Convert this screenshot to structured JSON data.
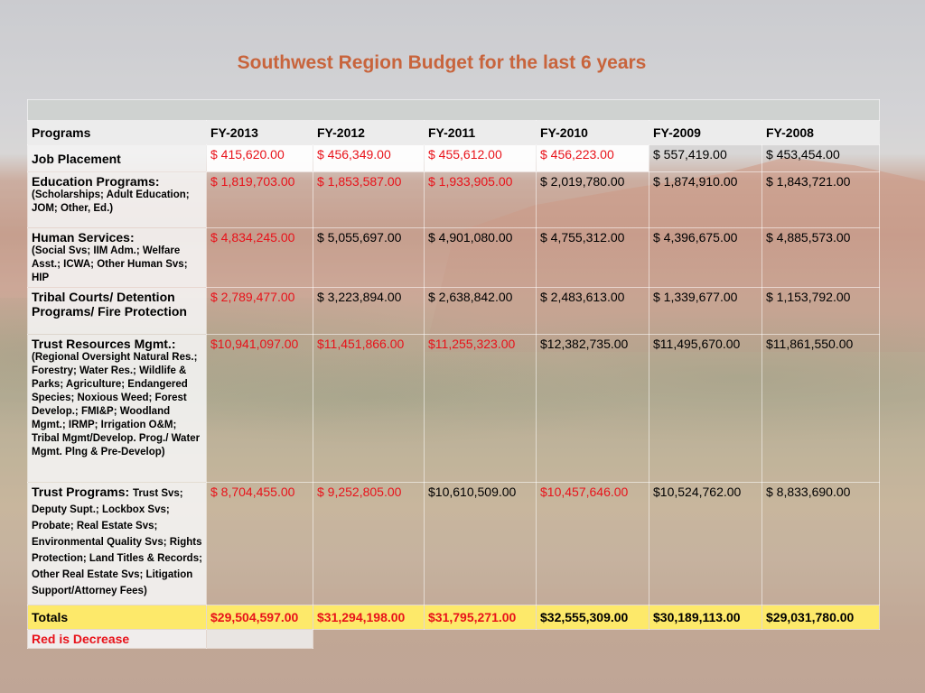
{
  "title": "Southwest Region Budget for the last 6 years",
  "colors": {
    "title": "#c8643c",
    "decrease": "#e8121a",
    "totals_bg": "#fde96a"
  },
  "header": {
    "programs": "Programs",
    "years": [
      "FY-2013",
      "FY-2012",
      "FY-2011",
      "FY-2010",
      "FY-2009",
      "FY-2008"
    ]
  },
  "rows": [
    {
      "main": "Job Placement",
      "sub": "",
      "values": [
        "$     415,620.00",
        "$     456,349.00",
        "$     455,612.00",
        "$     456,223.00",
        "$     557,419.00",
        "$     453,454.00"
      ]
    },
    {
      "main": "Education Programs:",
      "sub": "(Scholarships; Adult Education; JOM; Other, Ed.)",
      "values": [
        "$  1,819,703.00",
        "$  1,853,587.00",
        "$  1,933,905.00",
        "$  2,019,780.00",
        "$  1,874,910.00",
        "$  1,843,721.00"
      ]
    },
    {
      "main": "Human Services:",
      "sub": "(Social Svs; IIM Adm.; Welfare Asst.; ICWA; Other Human Svs; HIP",
      "values": [
        "$  4,834,245.00",
        "$  5,055,697.00",
        "$  4,901,080.00",
        "$  4,755,312.00",
        "$  4,396,675.00",
        "$  4,885,573.00"
      ]
    },
    {
      "main": "Tribal Courts/ Detention Programs/ Fire Protection",
      "sub": "",
      "values": [
        "$  2,789,477.00",
        "$  3,223,894.00",
        "$  2,638,842.00",
        "$  2,483,613.00",
        "$  1,339,677.00",
        "$  1,153,792.00"
      ]
    },
    {
      "main": "Trust Resources Mgmt.:",
      "sub": "(Regional Oversight Natural Res.; Forestry; Water Res.; Wildlife & Parks; Agriculture; Endangered Species; Noxious Weed; Forest Develop.; FMI&P; Woodland Mgmt.; IRMP; Irrigation O&M; Tribal Mgmt/Develop. Prog./ Water Mgmt. Plng & Pre-Develop)",
      "values": [
        "$10,941,097.00",
        "$11,451,866.00",
        "$11,255,323.00",
        "$12,382,735.00",
        "$11,495,670.00",
        "$11,861,550.00"
      ]
    },
    {
      "main": "Trust Programs:",
      "sub": "Trust Svs; Deputy Supt.; Lockbox Svs; Probate; Real Estate Svs; Environmental Quality Svs; Rights Protection; Land Titles & Records; Other Real Estate Svs; Litigation Support/Attorney Fees)",
      "values": [
        "$  8,704,455.00",
        "$  9,252,805.00",
        "$10,610,509.00",
        "$10,457,646.00",
        "$10,524,762.00",
        "$  8,833,690.00"
      ]
    }
  ],
  "totals": {
    "label": "Totals",
    "values": [
      "$29,504,597.00",
      "$31,294,198.00",
      "$31,795,271.00",
      "$32,555,309.00",
      "$30,189,113.00",
      "$29,031,780.00"
    ]
  },
  "note": "Red is Decrease"
}
